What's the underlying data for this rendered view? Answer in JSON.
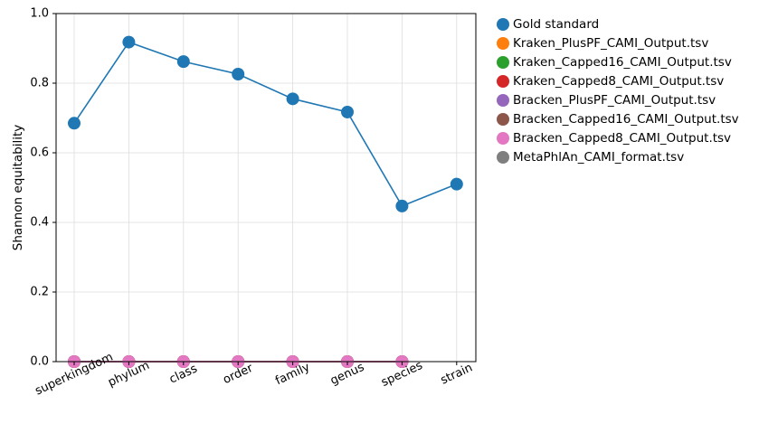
{
  "chart_data": {
    "type": "line",
    "title": "",
    "xlabel": "",
    "ylabel": "Shannon equitability",
    "categories": [
      "superkingdom",
      "phylum",
      "class",
      "order",
      "family",
      "genus",
      "species",
      "strain"
    ],
    "ylim": [
      0,
      1
    ],
    "yticks": [
      "0.0",
      "0.2",
      "0.4",
      "0.6",
      "0.8",
      "1.0"
    ],
    "grid": true,
    "legend_position": "outside-right",
    "series": [
      {
        "name": "Gold standard",
        "color": "#1f77b4",
        "values": [
          0.685,
          0.918,
          0.862,
          0.826,
          0.755,
          0.717,
          0.447,
          0.51
        ]
      },
      {
        "name": "Kraken_PlusPF_CAMI_Output.tsv",
        "color": "#ff7f0e",
        "values": [
          0,
          0,
          0,
          0,
          0,
          0,
          0,
          null
        ]
      },
      {
        "name": "Kraken_Capped16_CAMI_Output.tsv",
        "color": "#2ca02c",
        "values": [
          0,
          0,
          0,
          0,
          0,
          0,
          0,
          null
        ]
      },
      {
        "name": "Kraken_Capped8_CAMI_Output.tsv",
        "color": "#d62728",
        "values": [
          0,
          0,
          0,
          0,
          0,
          0,
          0,
          null
        ]
      },
      {
        "name": "Bracken_PlusPF_CAMI_Output.tsv",
        "color": "#9467bd",
        "values": [
          0,
          0,
          0,
          0,
          0,
          0,
          0,
          null
        ]
      },
      {
        "name": "Bracken_Capped16_CAMI_Output.tsv",
        "color": "#8c564b",
        "values": [
          0,
          0,
          0,
          0,
          0,
          0,
          0,
          null
        ]
      },
      {
        "name": "Bracken_Capped8_CAMI_Output.tsv",
        "color": "#e377c2",
        "values": [
          0,
          0,
          0,
          0,
          0,
          0,
          0,
          null
        ]
      },
      {
        "name": "MetaPhlAn_CAMI_format.tsv",
        "color": "#7f7f7f",
        "values": [
          null,
          null,
          null,
          null,
          null,
          null,
          null,
          null
        ]
      }
    ]
  }
}
